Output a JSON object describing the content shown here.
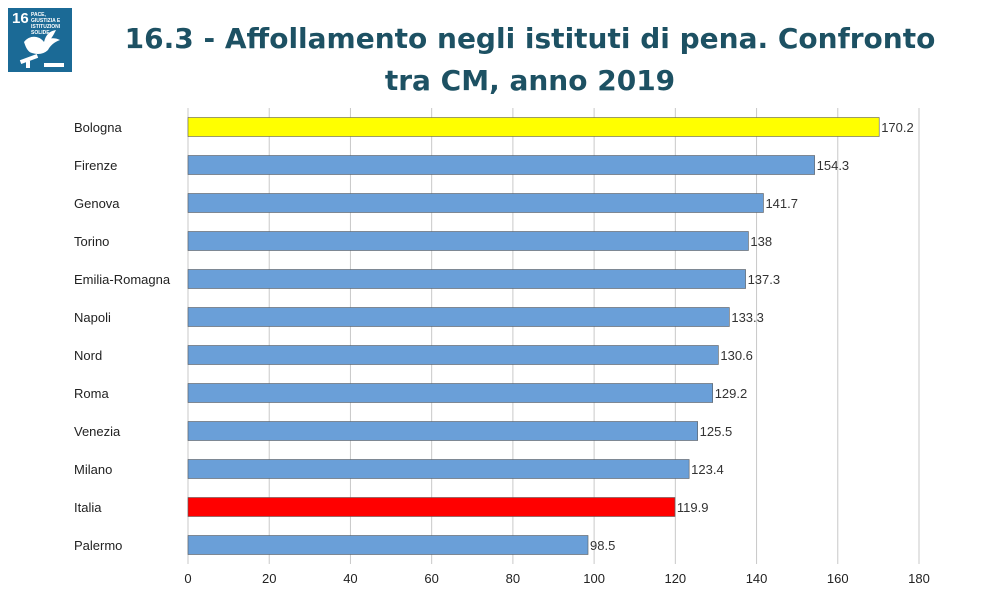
{
  "title": "16.3 - Affollamento negli istituti di pena. Confronto tra CM, anno 2019",
  "logo": {
    "number": "16",
    "text": "PACE, GIUSTIZIA E ISTITUZIONI SOLIDE",
    "color": "#1b6a96",
    "icon": "dove-gavel-icon"
  },
  "chart_data": {
    "type": "bar",
    "orientation": "horizontal",
    "title": "16.3 - Affollamento negli istituti di pena. Confronto tra CM, anno 2019",
    "xlabel": "",
    "ylabel": "",
    "xlim": [
      0,
      180
    ],
    "ticks": [
      0,
      20,
      40,
      60,
      80,
      100,
      120,
      140,
      160,
      180
    ],
    "grid": "vertical",
    "categories": [
      "Bologna",
      "Firenze",
      "Genova",
      "Torino",
      "Emilia-Romagna",
      "Napoli",
      "Nord",
      "Roma",
      "Venezia",
      "Milano",
      "Italia",
      "Palermo"
    ],
    "values": [
      170.2,
      154.3,
      141.7,
      138,
      137.3,
      133.3,
      130.6,
      129.2,
      125.5,
      123.4,
      119.9,
      98.5
    ],
    "value_labels": [
      "170.2",
      "154.3",
      "141.7",
      "138",
      "137.3",
      "133.3",
      "130.6",
      "129.2",
      "125.5",
      "123.4",
      "119.9",
      "98.5"
    ],
    "colors": {
      "default": "#6a9fd8",
      "highlight": {
        "Bologna": "#ffff00",
        "Italia": "#ff0000"
      },
      "grid": "#c8c8c8",
      "border": "#5a5a5a"
    }
  }
}
